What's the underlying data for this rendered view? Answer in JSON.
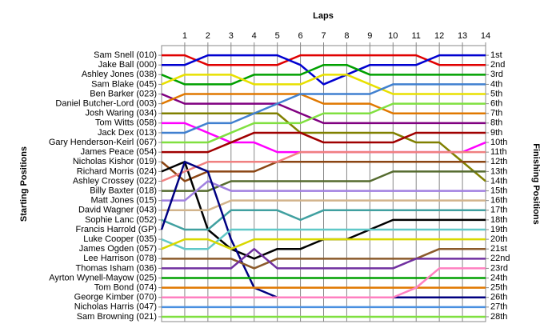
{
  "chart_data": {
    "type": "line",
    "title": "Laps",
    "y_title": "Starting Positions",
    "y2_title": "Finishing Positions",
    "x": [
      0,
      1,
      2,
      3,
      4,
      5,
      6,
      7,
      8,
      9,
      10,
      11,
      12,
      13,
      14
    ],
    "xlim": [
      0,
      14
    ],
    "xticks": [
      1,
      2,
      3,
      4,
      5,
      6,
      7,
      8,
      9,
      10,
      11,
      12,
      13,
      14
    ],
    "ylim": [
      28.5,
      0
    ],
    "yticks": [
      {
        "value": 1,
        "label": "1st"
      },
      {
        "value": 2,
        "label": "2nd"
      },
      {
        "value": 3,
        "label": "3rd"
      },
      {
        "value": 4,
        "label": "4th"
      },
      {
        "value": 5,
        "label": "5th"
      },
      {
        "value": 6,
        "label": "6th"
      },
      {
        "value": 7,
        "label": "7th"
      },
      {
        "value": 8,
        "label": "8th"
      },
      {
        "value": 9,
        "label": "9th"
      },
      {
        "value": 10,
        "label": "10th"
      },
      {
        "value": 11,
        "label": "11th"
      },
      {
        "value": 12,
        "label": "12th"
      },
      {
        "value": 13,
        "label": "13th"
      },
      {
        "value": 14,
        "label": "14th"
      },
      {
        "value": 15,
        "label": "15th"
      },
      {
        "value": 16,
        "label": "16th"
      },
      {
        "value": 17,
        "label": "17th"
      },
      {
        "value": 18,
        "label": "18th"
      },
      {
        "value": 19,
        "label": "19th"
      },
      {
        "value": 20,
        "label": "20th"
      },
      {
        "value": 21,
        "label": "21st"
      },
      {
        "value": 22,
        "label": "22nd"
      },
      {
        "value": 23,
        "label": "23rd"
      },
      {
        "value": 24,
        "label": "24th"
      },
      {
        "value": 25,
        "label": "25th"
      },
      {
        "value": 26,
        "label": "26th"
      },
      {
        "value": 27,
        "label": "27th"
      },
      {
        "value": 28,
        "label": "28th"
      }
    ],
    "grid": true,
    "series": [
      {
        "name": "Sam Snell (010)",
        "color": "#e00000",
        "values": [
          1,
          1,
          2,
          2,
          2,
          2,
          1,
          1,
          1,
          1,
          1,
          1,
          2,
          2,
          2
        ]
      },
      {
        "name": "Jake Ball (000)",
        "color": "#0000d0",
        "values": [
          2,
          2,
          1,
          1,
          1,
          1,
          2,
          4,
          3,
          2,
          2,
          2,
          1,
          1,
          1
        ]
      },
      {
        "name": "Ashley Jones (038)",
        "color": "#00a000",
        "values": [
          3,
          4,
          4,
          4,
          3,
          3,
          3,
          2,
          2,
          3,
          3,
          3,
          3,
          3,
          3
        ]
      },
      {
        "name": "Sam Blake (045)",
        "color": "#e8e000",
        "values": [
          4,
          3,
          3,
          3,
          4,
          4,
          4,
          3,
          3,
          4,
          5,
          5,
          5,
          5,
          5
        ]
      },
      {
        "name": "Ben Barker (023)",
        "color": "#800080",
        "values": [
          5,
          6,
          6,
          6,
          6,
          6,
          7,
          8,
          8,
          8,
          8,
          8,
          8,
          8,
          8
        ]
      },
      {
        "name": "Daniel Butcher-Lord (003)",
        "color": "#e07800",
        "values": [
          6,
          5,
          5,
          5,
          5,
          5,
          5,
          6,
          6,
          6,
          7,
          7,
          7,
          7,
          7
        ]
      },
      {
        "name": "Josh Waring (034)",
        "color": "#808000",
        "values": [
          7,
          7,
          7,
          7,
          7,
          7,
          9,
          9,
          9,
          9,
          9,
          10,
          10,
          12,
          14
        ]
      },
      {
        "name": "Tom Witts (058)",
        "color": "#ff00ff",
        "values": [
          8,
          8,
          9,
          10,
          10,
          11,
          11,
          11,
          11,
          11,
          11,
          11,
          11,
          11,
          10
        ]
      },
      {
        "name": "Jack Dex (013)",
        "color": "#4080d0",
        "values": [
          9,
          9,
          8,
          8,
          7,
          6,
          5,
          5,
          5,
          5,
          4,
          4,
          4,
          4,
          4
        ]
      },
      {
        "name": "Gary Henderson-Keirl (067)",
        "color": "#80e040",
        "values": [
          10,
          10,
          10,
          9,
          8,
          8,
          8,
          7,
          7,
          7,
          6,
          6,
          6,
          6,
          6
        ]
      },
      {
        "name": "James Peace (054)",
        "color": "#a00000",
        "values": [
          11,
          11,
          11,
          10,
          9,
          9,
          9,
          10,
          10,
          10,
          10,
          9,
          9,
          9,
          9
        ]
      },
      {
        "name": "Nicholas Kishor (019)",
        "color": "#8b4513",
        "values": [
          12,
          14,
          13,
          13,
          13,
          12,
          12,
          12,
          12,
          12,
          12,
          12,
          12,
          12,
          12
        ]
      },
      {
        "name": "Richard Morris (024)",
        "color": "#000000",
        "values": [
          13,
          12,
          19,
          21,
          22,
          21,
          21,
          20,
          20,
          19,
          18,
          18,
          18,
          18,
          18
        ]
      },
      {
        "name": "Ashley Crossey (022)",
        "color": "#f08080",
        "values": [
          14,
          13,
          12,
          12,
          12,
          12,
          11,
          11,
          11,
          11,
          11,
          11,
          11,
          11,
          11
        ]
      },
      {
        "name": "Billy Baxter (018)",
        "color": "#556b2f",
        "values": [
          15,
          15,
          15,
          14,
          14,
          14,
          14,
          14,
          14,
          14,
          13,
          13,
          13,
          13,
          13
        ]
      },
      {
        "name": "Matt Jones (015)",
        "color": "#a080e0",
        "values": [
          16,
          16,
          14,
          15,
          15,
          15,
          15,
          15,
          15,
          15,
          15,
          15,
          15,
          15,
          15
        ]
      },
      {
        "name": "David Wagner (043)",
        "color": "#d2b48c",
        "values": [
          17,
          17,
          17,
          16,
          16,
          16,
          16,
          16,
          16,
          16,
          16,
          16,
          16,
          16,
          16
        ]
      },
      {
        "name": "Sophie Lanc (052)",
        "color": "#40a0a0",
        "values": [
          18,
          19,
          19,
          17,
          17,
          17,
          18,
          17,
          17,
          17,
          17,
          17,
          17,
          17,
          17
        ]
      },
      {
        "name": "Francis Harrold (GP)",
        "color": "#000080",
        "values": [
          19,
          12,
          13,
          20,
          25,
          26,
          26,
          26,
          26,
          26,
          26,
          26,
          26,
          26,
          26
        ]
      },
      {
        "name": "Luke Cooper (035)",
        "color": "#60c8c8",
        "values": [
          20,
          21,
          21,
          19,
          19,
          19,
          19,
          19,
          19,
          19,
          19,
          19,
          19,
          19,
          19
        ]
      },
      {
        "name": "James Ogden (057)",
        "color": "#d8d800",
        "values": [
          21,
          20,
          20,
          21,
          20,
          20,
          20,
          20,
          20,
          20,
          20,
          20,
          20,
          20,
          20
        ]
      },
      {
        "name": "Lee Harrison (078)",
        "color": "#8b5a2b",
        "values": [
          22,
          22,
          22,
          22,
          23,
          22,
          22,
          22,
          22,
          22,
          22,
          22,
          21,
          21,
          21
        ]
      },
      {
        "name": "Thomas Isham (036)",
        "color": "#7030a0",
        "values": [
          23,
          23,
          23,
          23,
          21,
          23,
          23,
          23,
          23,
          23,
          23,
          22,
          22,
          22,
          22
        ]
      },
      {
        "name": "Ayrton Wynell-Mayow (025)",
        "color": "#00a000",
        "values": [
          24,
          24,
          24,
          24,
          24,
          24,
          24,
          24,
          24,
          24,
          24,
          24,
          24,
          24,
          24
        ]
      },
      {
        "name": "Tom Bond (074)",
        "color": "#e07800",
        "values": [
          25,
          25,
          25,
          25,
          25,
          25,
          25,
          25,
          25,
          25,
          25,
          25,
          25,
          25,
          25
        ]
      },
      {
        "name": "George Kimber (070)",
        "color": "#ff80c0",
        "values": [
          26,
          26,
          26,
          26,
          26,
          26,
          26,
          26,
          26,
          26,
          26,
          25,
          23,
          23,
          23
        ]
      },
      {
        "name": "Nicholas Harris (047)",
        "color": "#4a90e0",
        "values": [
          27,
          27,
          27,
          27,
          27,
          27,
          27,
          27,
          27,
          27,
          27,
          27,
          27,
          27,
          27
        ]
      },
      {
        "name": "Sam Browning (021)",
        "color": "#80e040",
        "values": [
          28,
          28,
          28,
          28,
          28,
          28,
          28,
          28,
          28,
          28,
          28,
          28,
          28,
          28,
          28
        ]
      }
    ]
  }
}
